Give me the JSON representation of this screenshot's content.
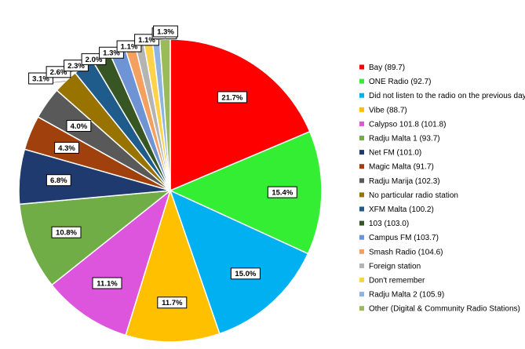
{
  "chart_data": {
    "type": "pie",
    "title": "",
    "legend_position": "right",
    "slices": [
      {
        "label": "Bay (89.7)",
        "value": 21.7,
        "display": "21.7%",
        "color": "#ff0000"
      },
      {
        "label": "ONE Radio (92.7)",
        "value": 15.4,
        "display": "15.4%",
        "color": "#33ee33"
      },
      {
        "label": "Did not listen to the radio on the previous day",
        "value": 15.0,
        "display": "15.0%",
        "color": "#00b0f0"
      },
      {
        "label": "Vibe (88.7)",
        "value": 11.7,
        "display": "11.7%",
        "color": "#ffc000"
      },
      {
        "label": "Calypso 101.8 (101.8)",
        "value": 11.1,
        "display": "11.1%",
        "color": "#dd55dd"
      },
      {
        "label": "Radju Malta 1 (93.7)",
        "value": 10.8,
        "display": "10.8%",
        "color": "#70ad47"
      },
      {
        "label": "Net FM (101.0)",
        "value": 6.8,
        "display": "6.8%",
        "color": "#1f3a6e"
      },
      {
        "label": "Magic Malta (91.7)",
        "value": 4.3,
        "display": "4.3%",
        "color": "#a0400c"
      },
      {
        "label": "Radju Marija (102.3)",
        "value": 4.0,
        "display": "4.0%",
        "color": "#595959"
      },
      {
        "label": "No particular radio station",
        "value": 3.1,
        "display": "3.1%",
        "color": "#997300"
      },
      {
        "label": "XFM Malta (100.2)",
        "value": 2.6,
        "display": "2.6%",
        "color": "#1f5c8c"
      },
      {
        "label": "103 (103.0)",
        "value": 2.3,
        "display": "2.3%",
        "color": "#375623"
      },
      {
        "label": "Campus FM (103.7)",
        "value": 2.0,
        "display": "2.0%",
        "color": "#6f94d6"
      },
      {
        "label": "Smash Radio (104.6)",
        "value": 1.3,
        "display": "1.3%",
        "color": "#f4a060"
      },
      {
        "label": "Foreign station",
        "value": 1.1,
        "display": "1.1%",
        "color": "#b4b4b4"
      },
      {
        "label": "Don't remember",
        "value": 1.1,
        "display": "1.1%",
        "color": "#ffd24a"
      },
      {
        "label": "Radju Malta 2 (105.9)",
        "value": 0.9,
        "display": "0.9%",
        "color": "#8db3e2"
      },
      {
        "label": "Other (Digital & Community Radio Stations)",
        "value": 1.3,
        "display": "1.3%",
        "color": "#9bbb59"
      }
    ]
  }
}
